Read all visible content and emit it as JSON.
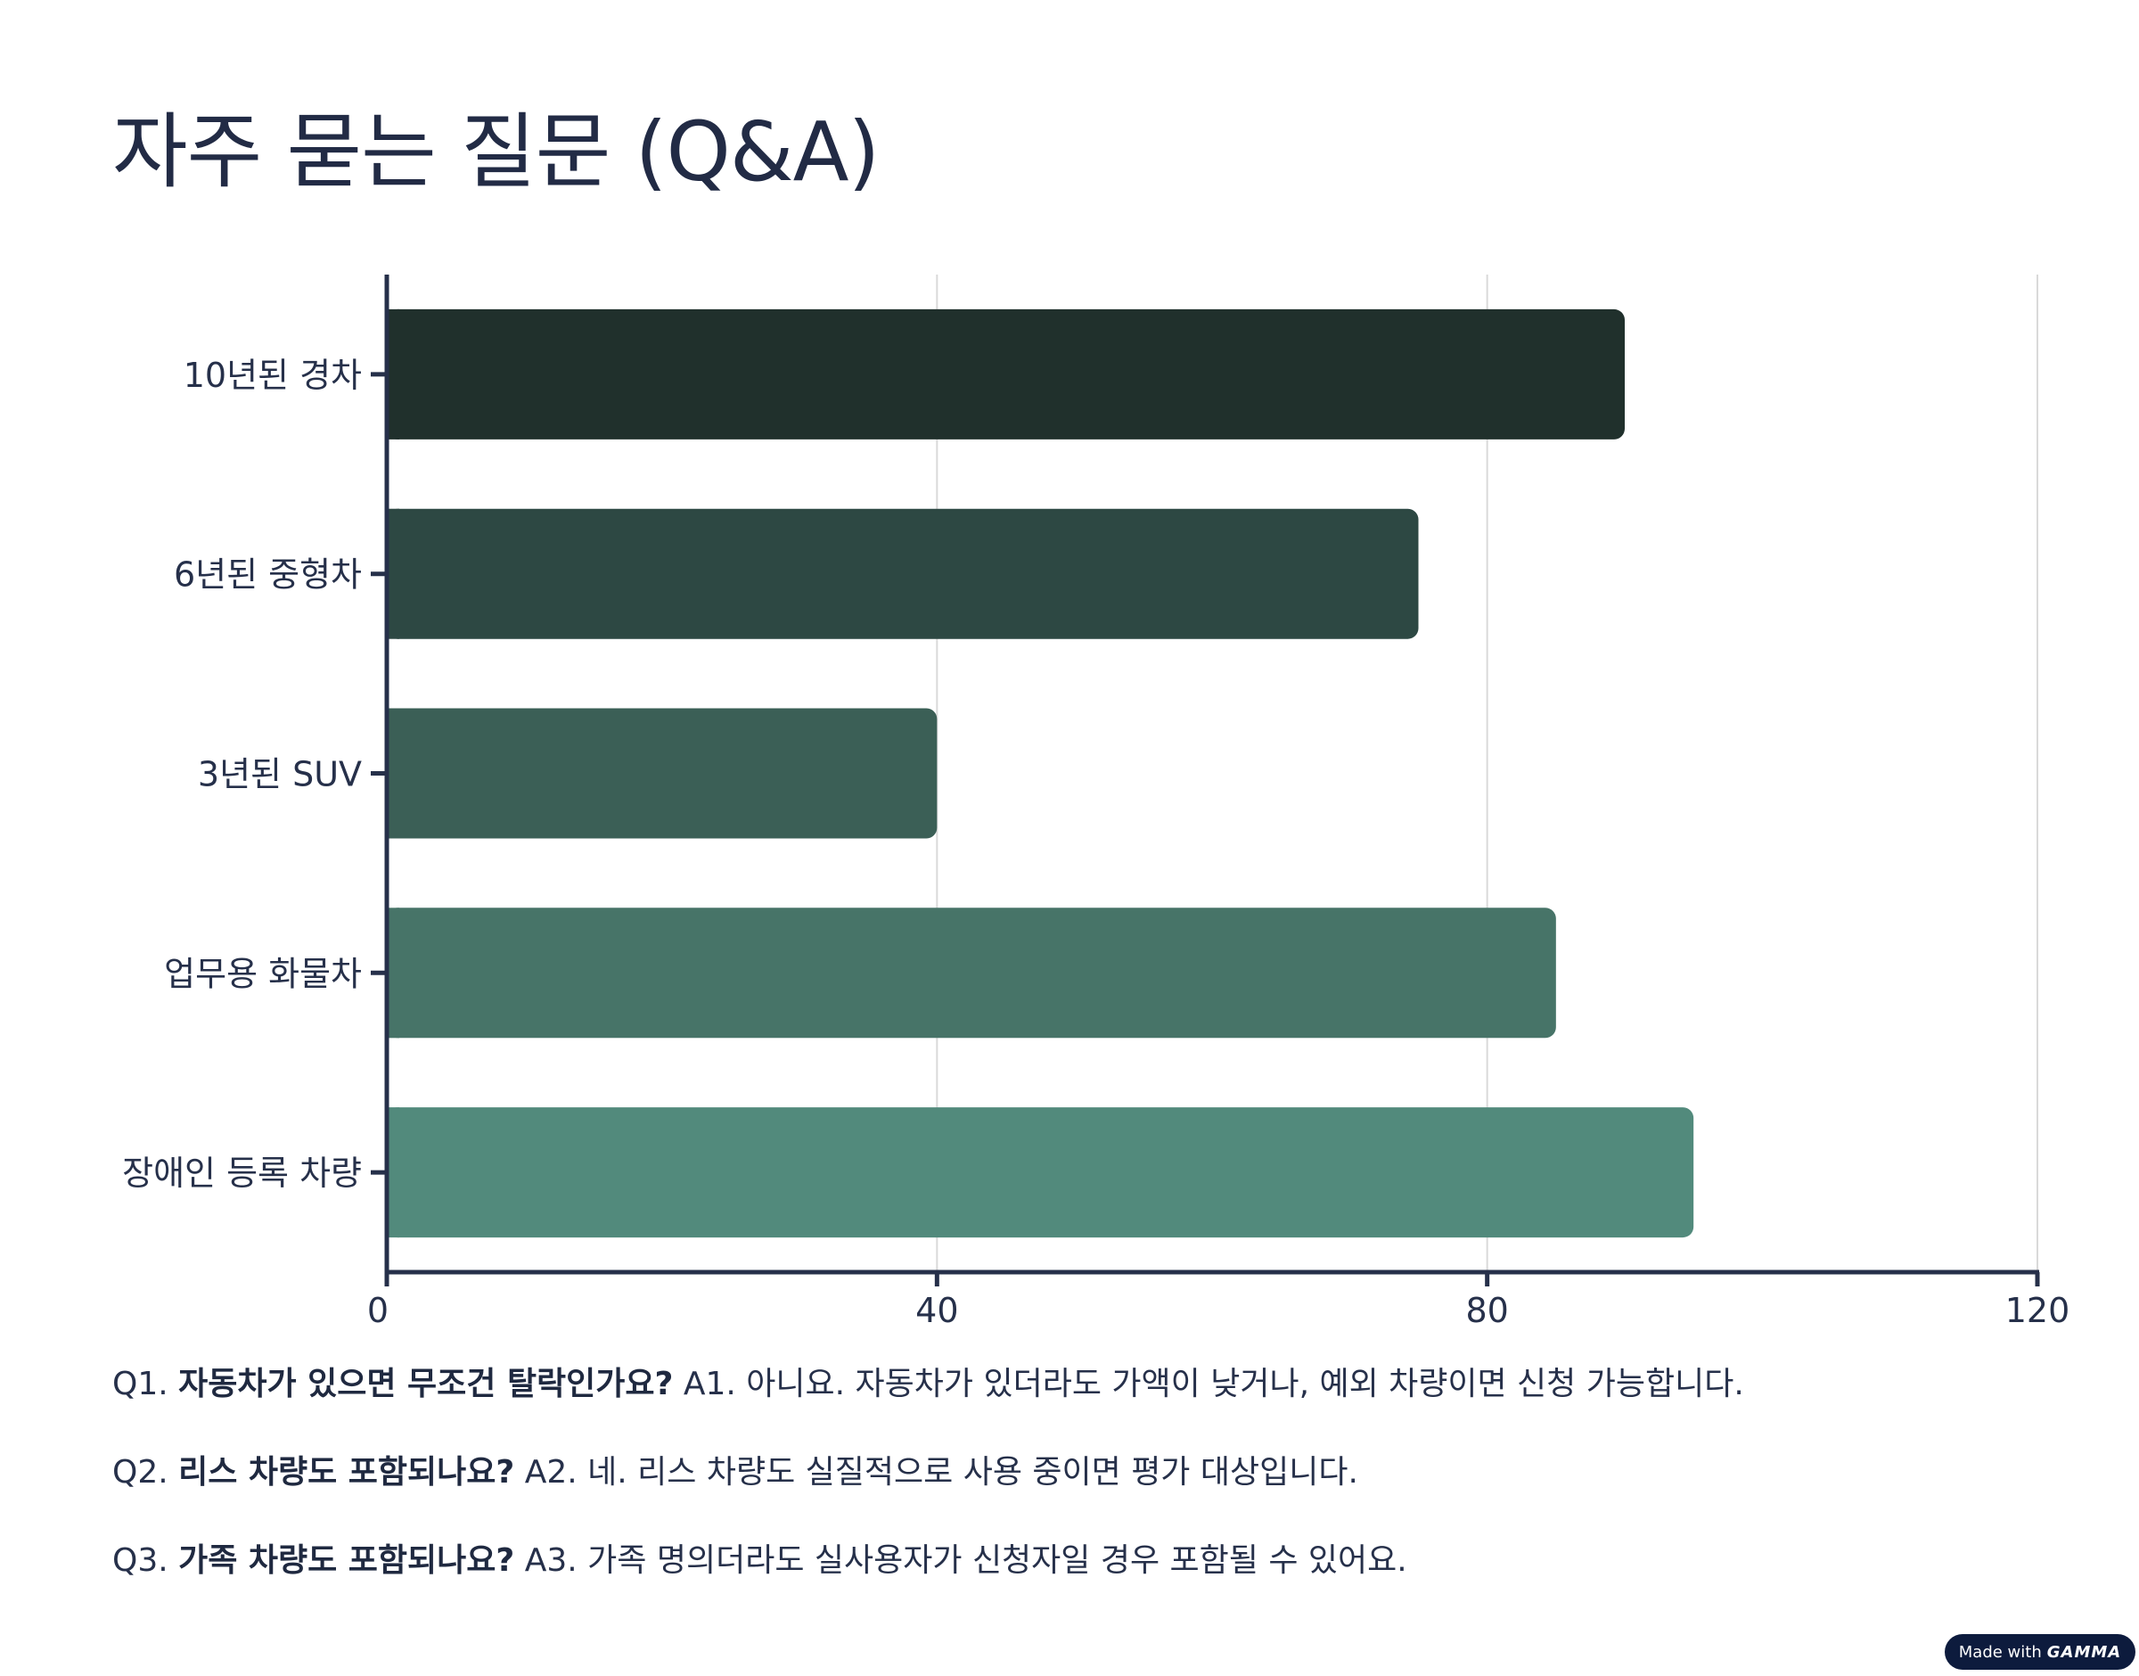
{
  "title": "자주 묻는 질문 (Q&A)",
  "chart_data": {
    "type": "bar",
    "orientation": "horizontal",
    "categories": [
      "10년된 경차",
      "6년된 중형차",
      "3년된 SUV",
      "업무용 화물차",
      "장애인 등록 차량"
    ],
    "values": [
      90,
      75,
      40,
      85,
      95
    ],
    "xlim": [
      0,
      120
    ],
    "x_ticks": [
      0,
      40,
      80,
      120
    ],
    "grid": "vertical gridlines on",
    "legend": "none",
    "bar_colors": [
      "#20302c",
      "#2d4843",
      "#3b5f56",
      "#477468",
      "#528a7c"
    ]
  },
  "qa": [
    {
      "num": "Q1.",
      "question": "자동차가 있으면 무조건 탈락인가요?",
      "answer": "A1. 아니요. 자동차가 있더라도 가액이 낮거나, 예외 차량이면 신청 가능합니다."
    },
    {
      "num": "Q2.",
      "question": "리스 차량도 포함되나요?",
      "answer": "A2. 네. 리스 차량도 실질적으로 사용 중이면 평가 대상입니다."
    },
    {
      "num": "Q3.",
      "question": "가족 차량도 포함되나요?",
      "answer": "A3. 가족 명의더라도 실사용자가 신청자일 경우 포함될 수 있어요."
    }
  ],
  "badge": {
    "prefix": "Made with",
    "brand": "GAMMA"
  }
}
